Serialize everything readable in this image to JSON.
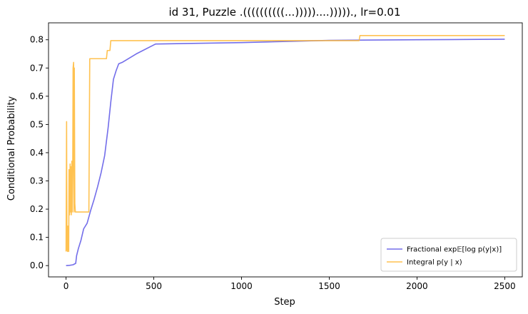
{
  "chart_data": {
    "type": "line",
    "title": "id 31, Puzzle .((((((((((...)))))....)))))., lr=0.01",
    "xlabel": "Step",
    "ylabel": "Conditional Probability",
    "xlim": [
      -100,
      2600
    ],
    "ylim": [
      -0.04,
      0.86
    ],
    "xticks": [
      0,
      500,
      1000,
      1500,
      2000,
      2500
    ],
    "yticks": [
      0.0,
      0.1,
      0.2,
      0.3,
      0.4,
      0.5,
      0.6,
      0.7,
      0.8
    ],
    "grid": false,
    "legend_position": "lower right",
    "series": [
      {
        "name": "Fractional exp𝔼[log p(y|x)]",
        "color": "#5a55e6",
        "x": [
          0,
          20,
          40,
          55,
          60,
          70,
          85,
          100,
          120,
          140,
          160,
          180,
          200,
          220,
          240,
          255,
          270,
          285,
          300,
          320,
          400,
          510,
          1000,
          1500,
          2000,
          2500
        ],
        "y": [
          0.0,
          0.001,
          0.003,
          0.008,
          0.035,
          0.06,
          0.09,
          0.13,
          0.15,
          0.195,
          0.235,
          0.28,
          0.33,
          0.39,
          0.49,
          0.58,
          0.66,
          0.69,
          0.715,
          0.72,
          0.75,
          0.785,
          0.79,
          0.798,
          0.8,
          0.802
        ]
      },
      {
        "name": "Integral p(y | x)",
        "color": "#ffb732",
        "x": [
          0,
          3,
          5,
          8,
          10,
          12,
          15,
          17,
          20,
          23,
          25,
          28,
          30,
          33,
          35,
          38,
          40,
          43,
          45,
          47,
          50,
          53,
          55,
          60,
          100,
          130,
          135,
          230,
          235,
          250,
          255,
          900,
          1670,
          1675,
          2500
        ],
        "y": [
          0.05,
          0.51,
          0.06,
          0.05,
          0.14,
          0.1,
          0.05,
          0.34,
          0.18,
          0.36,
          0.19,
          0.35,
          0.18,
          0.37,
          0.19,
          0.34,
          0.7,
          0.72,
          0.19,
          0.7,
          0.22,
          0.19,
          0.19,
          0.19,
          0.19,
          0.19,
          0.733,
          0.733,
          0.762,
          0.762,
          0.797,
          0.797,
          0.797,
          0.815,
          0.815
        ]
      }
    ]
  }
}
